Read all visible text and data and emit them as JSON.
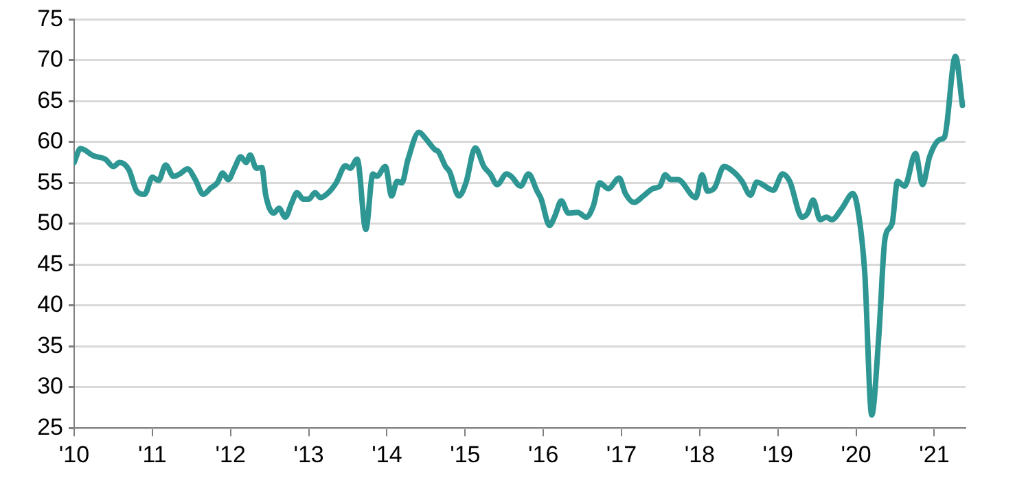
{
  "chart_data": {
    "type": "line",
    "xlim": [
      2010,
      2021.4
    ],
    "ylim": [
      25,
      75
    ],
    "xticks": [
      {
        "value": 2010,
        "label": "'10"
      },
      {
        "value": 2011,
        "label": "'11"
      },
      {
        "value": 2012,
        "label": "'12"
      },
      {
        "value": 2013,
        "label": "'13"
      },
      {
        "value": 2014,
        "label": "'14"
      },
      {
        "value": 2015,
        "label": "'15"
      },
      {
        "value": 2016,
        "label": "'16"
      },
      {
        "value": 2017,
        "label": "'17"
      },
      {
        "value": 2018,
        "label": "'18"
      },
      {
        "value": 2019,
        "label": "'19"
      },
      {
        "value": 2020,
        "label": "'20"
      },
      {
        "value": 2021,
        "label": "'21"
      }
    ],
    "yticks": [
      25,
      30,
      35,
      40,
      45,
      50,
      55,
      60,
      65,
      70,
      75
    ],
    "grid": "y",
    "legend": false,
    "marker": "none",
    "line_style": "solid",
    "series": [
      {
        "color": "#2e9794",
        "x": [
          2010.0,
          2010.08,
          2010.25,
          2010.4,
          2010.5,
          2010.58,
          2010.7,
          2010.8,
          2010.9,
          2011.0,
          2011.08,
          2011.17,
          2011.27,
          2011.35,
          2011.45,
          2011.55,
          2011.65,
          2011.75,
          2011.83,
          2011.9,
          2011.97,
          2012.05,
          2012.13,
          2012.2,
          2012.25,
          2012.33,
          2012.4,
          2012.45,
          2012.55,
          2012.62,
          2012.7,
          2012.78,
          2012.85,
          2012.93,
          2013.0,
          2013.08,
          2013.15,
          2013.25,
          2013.35,
          2013.47,
          2013.53,
          2013.62,
          2013.73,
          2013.82,
          2013.87,
          2013.98,
          2014.06,
          2014.13,
          2014.19,
          2014.27,
          2014.41,
          2014.48,
          2014.61,
          2014.66,
          2014.75,
          2014.8,
          2014.92,
          2015.01,
          2015.13,
          2015.24,
          2015.32,
          2015.41,
          2015.53,
          2015.59,
          2015.71,
          2015.81,
          2015.92,
          2015.97,
          2016.08,
          2016.15,
          2016.23,
          2016.32,
          2016.44,
          2016.55,
          2016.64,
          2016.72,
          2016.83,
          2016.97,
          2017.05,
          2017.16,
          2017.28,
          2017.4,
          2017.49,
          2017.56,
          2017.63,
          2017.72,
          2017.95,
          2018.03,
          2018.1,
          2018.19,
          2018.31,
          2018.45,
          2018.54,
          2018.65,
          2018.73,
          2018.94,
          2019.06,
          2019.15,
          2019.31,
          2019.38,
          2019.45,
          2019.54,
          2019.62,
          2019.69,
          2019.82,
          2019.96,
          2020.03,
          2020.11,
          2020.2,
          2020.29,
          2020.37,
          2020.46,
          2020.53,
          2020.62,
          2020.76,
          2020.85,
          2020.94,
          2021.07,
          2021.13,
          2021.27,
          2021.36
        ],
        "values": [
          57.5,
          59.2,
          58.3,
          57.9,
          57,
          57.5,
          56.6,
          54,
          53.6,
          55.7,
          55.3,
          57.2,
          55.8,
          56.1,
          56.7,
          55.4,
          53.6,
          54.4,
          55,
          56.2,
          55.4,
          56.8,
          58.2,
          57.5,
          58.4,
          56.8,
          56.9,
          53.5,
          51.3,
          51.9,
          50.8,
          52.5,
          53.8,
          53,
          53,
          53.8,
          53.2,
          53.8,
          55,
          57.1,
          56.8,
          57.9,
          49.3,
          56.1,
          55.8,
          57,
          53.4,
          55.2,
          55,
          57.9,
          61.2,
          60.6,
          59.1,
          58.8,
          57,
          56.4,
          53.4,
          55,
          59.3,
          57,
          56.1,
          54.8,
          56.1,
          55.8,
          54.6,
          56.1,
          54,
          53.1,
          49.8,
          51,
          52.8,
          51.3,
          51.4,
          50.8,
          52.2,
          55,
          54.3,
          55.6,
          53.7,
          52.6,
          53.4,
          54.3,
          54.6,
          56,
          55.4,
          55.4,
          53.2,
          56,
          54,
          54.4,
          57,
          56.2,
          55.2,
          53.5,
          55.1,
          54.1,
          56.1,
          55.2,
          50.8,
          51.3,
          52.9,
          50.5,
          50.8,
          50.5,
          51.9,
          53.7,
          51.3,
          44.1,
          26.6,
          36.2,
          48.2,
          50,
          55.2,
          54.6,
          58.6,
          54.8,
          58.2,
          60.3,
          60.6,
          70.5,
          64.5
        ]
      }
    ]
  }
}
